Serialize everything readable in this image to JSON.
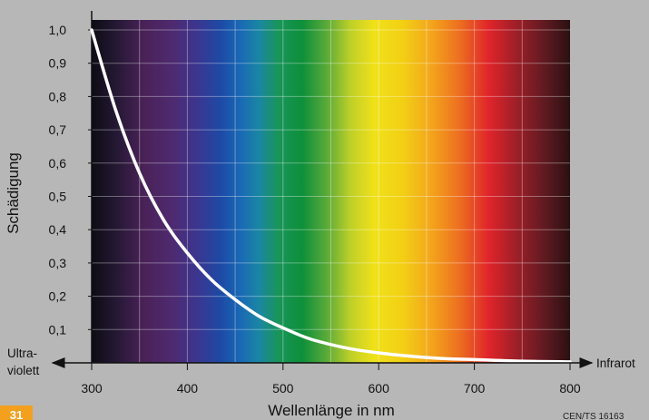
{
  "chart_data": {
    "type": "line",
    "title": "",
    "xlabel": "Wellenlänge in nm",
    "ylabel": "Schädigung",
    "xlim": [
      300,
      800
    ],
    "ylim": [
      0,
      1.0
    ],
    "x_ticks": [
      "300",
      "400",
      "500",
      "600",
      "700",
      "800"
    ],
    "y_ticks": [
      "0,1",
      "0,2",
      "0,3",
      "0,4",
      "0,5",
      "0,6",
      "0,7",
      "0,8",
      "0,9",
      "1,0"
    ],
    "grid": true,
    "background": "visible spectrum gradient from violet (300 nm) to dark red (800 nm)",
    "series": [
      {
        "x": [
          300,
          325,
          350,
          375,
          400,
          425,
          450,
          475,
          500,
          525,
          550,
          575,
          600,
          625,
          650,
          675,
          700,
          750,
          800
        ],
        "y": [
          1.0,
          0.76,
          0.57,
          0.43,
          0.33,
          0.25,
          0.19,
          0.14,
          0.105,
          0.075,
          0.055,
          0.04,
          0.03,
          0.022,
          0.016,
          0.012,
          0.01,
          0.005,
          0.003
        ],
        "color": "#ffffff"
      }
    ]
  },
  "annotations": {
    "left_end": "Ultra-\nviolett",
    "left_end_line1": "Ultra-",
    "left_end_line2": "violett",
    "right_end": "Infrarot",
    "badge": "31",
    "source": "CEN/TS 16163"
  },
  "colors": {
    "background": "#b7b7b7",
    "curve": "#ffffff",
    "badge": "#f2a01e",
    "grid": "#ffffff"
  }
}
